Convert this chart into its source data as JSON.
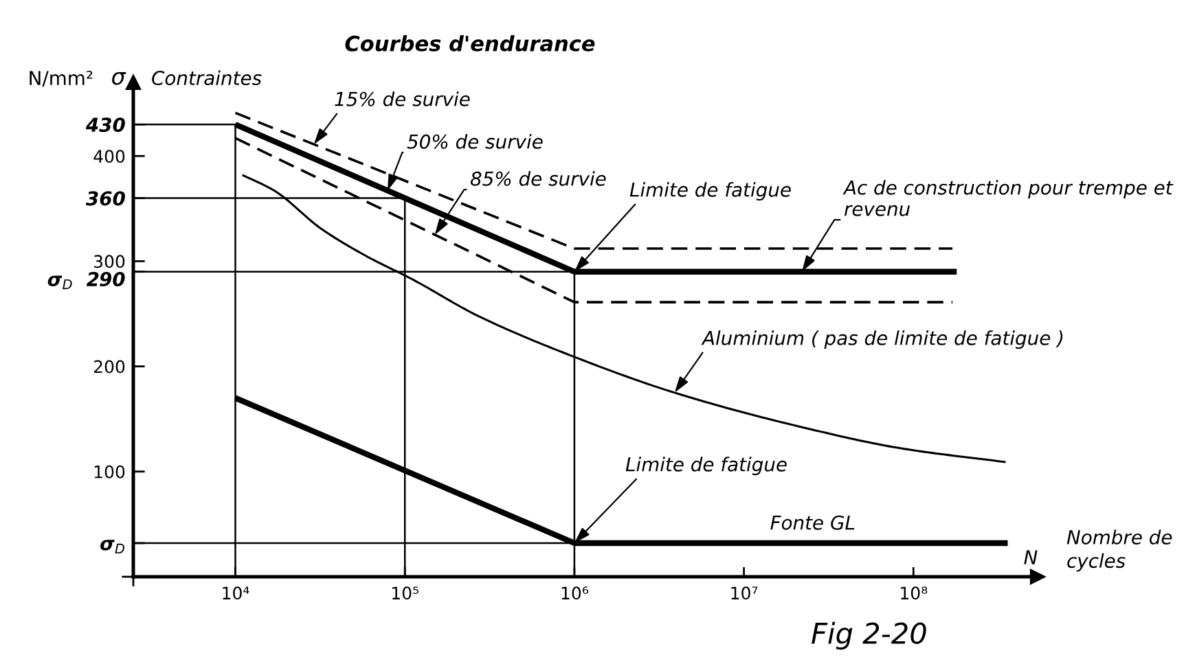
{
  "chart_data": {
    "type": "line",
    "title": "Courbes d'endurance",
    "ylabel": "Contraintes",
    "xlabel": "Nombre de\ncycles",
    "log": "x",
    "xlim": [
      2500,
      540000000
    ],
    "xticks": [
      {
        "value": 2500,
        "label": null
      },
      {
        "value": 10000,
        "label": "10⁴"
      },
      {
        "value": 100000,
        "label": "10⁵"
      },
      {
        "value": 1000000,
        "label": "10⁶"
      },
      {
        "value": 10000000,
        "label": "10⁷"
      },
      {
        "value": 100000000,
        "label": "10⁸"
      }
    ],
    "ylim": [
      0,
      470
    ],
    "yticks": [
      {
        "value": 0,
        "label": null
      },
      {
        "value": 32,
        "label": "σ$_{D}$"
      },
      100,
      200,
      {
        "value": 290,
        "label": "σ$_{D}$  290"
      },
      300,
      360,
      400,
      430
    ],
    "series": [
      {
        "color": "#000000",
        "line_style": "dashed",
        "x": [
          10000,
          1000000,
          170000000
        ],
        "values": [
          441,
          312,
          312
        ]
      },
      {
        "color": "#000000",
        "x": [
          10000,
          1000000,
          180000000
        ],
        "values": [
          430,
          290,
          290
        ]
      },
      {
        "color": "#000000",
        "line_style": "dashed",
        "x": [
          10000,
          1000000,
          170000000
        ],
        "values": [
          417,
          261,
          261
        ]
      },
      {
        "color": "#000000",
        "x": [
          11000,
          17000,
          32000,
          59000,
          110000,
          270000,
          1000000,
          3900000,
          21000000,
          85000000,
          350000000
        ],
        "values": [
          382,
          367,
          331,
          305,
          283,
          248,
          209,
          175,
          143,
          122,
          109
        ]
      },
      {
        "name": "Fonte GL",
        "color": "#000000",
        "x": [
          10000,
          1000000,
          360000000
        ],
        "values": [
          170,
          32,
          32
        ]
      },
      {
        "color": "#000000",
        "x": [
          2500,
          10000,
          10000
        ],
        "values": [
          430,
          430,
          0
        ]
      },
      {
        "color": "#000000",
        "x": [
          2500,
          100000,
          100000
        ],
        "values": [
          360,
          360,
          0
        ]
      },
      {
        "color": "#000000",
        "x": [
          2500,
          1000000,
          1000000
        ],
        "values": [
          290,
          290,
          0
        ]
      },
      {
        "color": "#000000",
        "x": [
          2500,
          1000000
        ],
        "values": [
          32,
          32
        ]
      }
    ],
    "annotations": [
      {
        "text": "15% de survie",
        "x": 29000,
        "y": 411
      },
      {
        "text": "50% de survie",
        "x": 79000,
        "y": 367
      },
      {
        "text": "85% de survie",
        "x": 150000,
        "y": 325
      },
      {
        "text": "Limite de fatigue",
        "x": 1000000,
        "y": 290
      },
      {
        "text": "Ac de construction pour trempe et\nrevenu",
        "x": 22000000,
        "y": 290
      },
      {
        "text": "Aluminium ( pas de limite de fatigue )",
        "x": 3900000,
        "y": 175
      },
      {
        "text": "Limite de fatigue",
        "x": 1000000,
        "y": 32
      },
      "N/mm²",
      "σ",
      "N",
      "Fig 2-20"
    ]
  }
}
